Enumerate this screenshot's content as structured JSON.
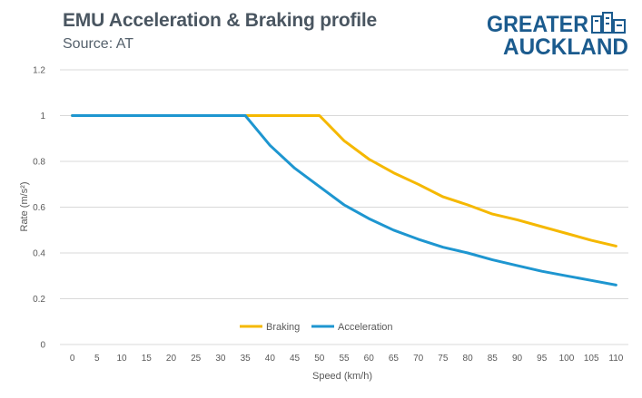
{
  "header": {
    "title": "EMU Acceleration & Braking profile",
    "subtitle": "Source: AT"
  },
  "logo": {
    "line1": "GREATER",
    "line2": "AUCKLAND",
    "icon": "city-buildings-icon",
    "color": "#1b5b8e"
  },
  "chart_data": {
    "type": "line",
    "title": "EMU Acceleration & Braking profile",
    "subtitle": "Source: AT",
    "xlabel": "Speed (km/h)",
    "ylabel": "Rate (m/s²)",
    "categories": [
      "0",
      "5",
      "10",
      "15",
      "20",
      "25",
      "30",
      "35",
      "40",
      "45",
      "50",
      "55",
      "60",
      "65",
      "70",
      "75",
      "80",
      "85",
      "90",
      "95",
      "100",
      "105",
      "110"
    ],
    "y_ticks": [
      "0",
      "0.2",
      "0.4",
      "0.6",
      "0.8",
      "1",
      "1.2"
    ],
    "ylim": [
      0,
      1.2
    ],
    "grid": true,
    "legend_position": "bottom-center",
    "series": [
      {
        "name": "Braking",
        "color": "#f5b800",
        "values": [
          1,
          1,
          1,
          1,
          1,
          1,
          1,
          1,
          1,
          1,
          1,
          0.89,
          0.81,
          0.75,
          0.7,
          0.645,
          0.61,
          0.57,
          0.545,
          0.515,
          0.485,
          0.455,
          0.43
        ]
      },
      {
        "name": "Acceleration",
        "color": "#1e96d0",
        "values": [
          1,
          1,
          1,
          1,
          1,
          1,
          1,
          1,
          0.87,
          0.77,
          0.69,
          0.61,
          0.55,
          0.5,
          0.46,
          0.425,
          0.4,
          0.37,
          0.345,
          0.32,
          0.3,
          0.28,
          0.26
        ]
      }
    ]
  }
}
